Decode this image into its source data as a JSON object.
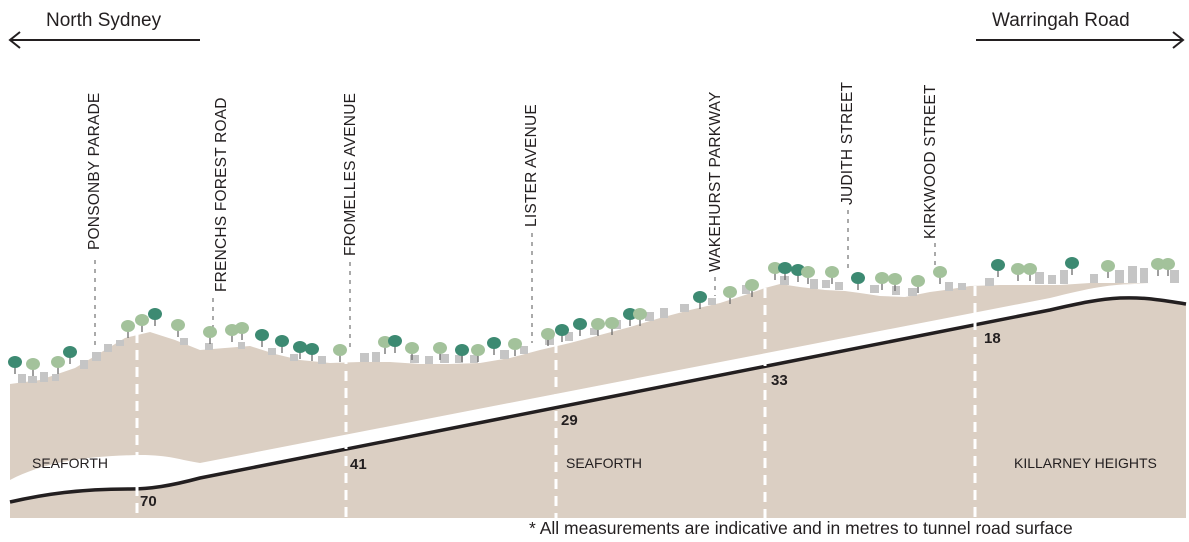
{
  "directions": {
    "left": "North Sydney",
    "right": "Warringah Road"
  },
  "streets": [
    "PONSONBY PARADE",
    "FRENCHS FOREST ROAD",
    "FROMELLES AVENUE",
    "LISTER AVENUE",
    "WAKEHURST PARKWAY",
    "JUDITH STREET",
    "KIRKWOOD STREET"
  ],
  "suburbs": [
    "SEAFORTH",
    "SEAFORTH",
    "KILLARNEY HEIGHTS"
  ],
  "depths": [
    "70",
    "41",
    "29",
    "33",
    "18"
  ],
  "footnote": "* All measurements are indicative and in metres to tunnel road surface",
  "colors": {
    "ground": "#dbcfc3",
    "tunnel": "#231f20",
    "tree_dark": "#3d8a72",
    "tree_light": "#a3c29b",
    "building": "#c5c5c5"
  }
}
